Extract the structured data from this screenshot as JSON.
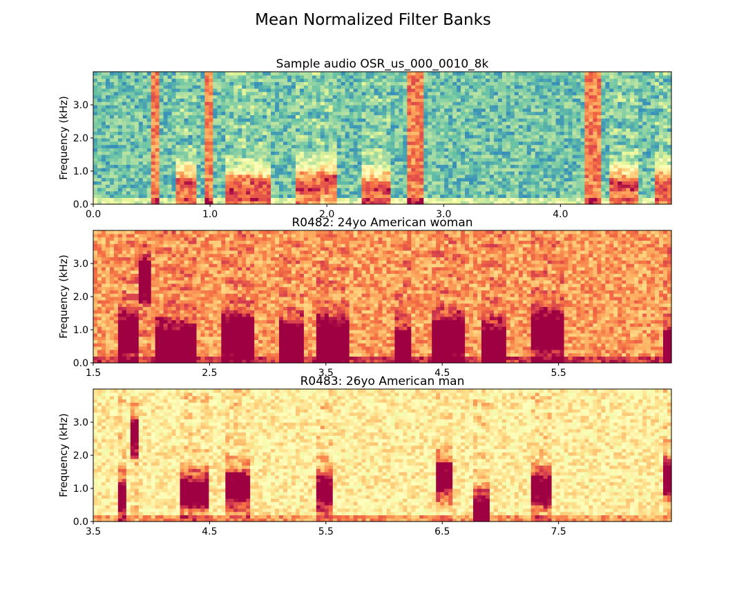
{
  "figure": {
    "suptitle": "Mean Normalized Filter Banks"
  },
  "colormap": {
    "name": "Spectral",
    "stops": [
      "#9e0142",
      "#d53e4f",
      "#f46d43",
      "#fdae61",
      "#fee08b",
      "#ffffbf",
      "#e6f598",
      "#abdda4",
      "#66c2a5",
      "#3288bd",
      "#5e4fa2"
    ]
  },
  "chart_data": [
    {
      "type": "heatmap",
      "title": "Sample audio OSR_us_000_0010_8k",
      "xlabel": "",
      "ylabel": "Frequency (kHz)",
      "xlim": [
        0.0,
        4.95
      ],
      "ylim": [
        0.0,
        4.0
      ],
      "xticks": [
        0.0,
        1.0,
        2.0,
        3.0,
        4.0
      ],
      "xtick_labels": [
        "0.0",
        "1.0",
        "2.0",
        "3.0",
        "4.0"
      ],
      "yticks": [
        0.0,
        1.0,
        2.0,
        3.0
      ],
      "ytick_labels": [
        "0.0",
        "1.0",
        "2.0",
        "3.0"
      ],
      "baseline": 0.78,
      "bursts": [
        {
          "start": 0.51,
          "end": 0.55,
          "f0": 0.0
        },
        {
          "start": 0.7,
          "end": 0.87,
          "f0": 0.55
        },
        {
          "start": 0.95,
          "end": 1.02,
          "f0": 0.0
        },
        {
          "start": 1.12,
          "end": 1.51,
          "f0": 0.48
        },
        {
          "start": 1.73,
          "end": 1.93,
          "f0": 0.55
        },
        {
          "start": 1.93,
          "end": 2.1,
          "f0": 0.65
        },
        {
          "start": 2.3,
          "end": 2.55,
          "f0": 0.45
        },
        {
          "start": 2.7,
          "end": 2.83,
          "f0": 0.0
        },
        {
          "start": 4.2,
          "end": 4.35,
          "f0": 0.0
        },
        {
          "start": 4.42,
          "end": 4.67,
          "f0": 0.55
        },
        {
          "start": 4.82,
          "end": 4.95,
          "f0": 0.5
        }
      ]
    },
    {
      "type": "heatmap",
      "title": "R0482: 24yo American woman",
      "xlabel": "",
      "ylabel": "Frequency (kHz)",
      "xlim": [
        1.5,
        6.47
      ],
      "ylim": [
        0.0,
        4.0
      ],
      "xticks": [
        1.5,
        2.5,
        3.5,
        4.5,
        5.5
      ],
      "xtick_labels": [
        "1.5",
        "2.5",
        "3.5",
        "4.5",
        "5.5"
      ],
      "yticks": [
        0.0,
        1.0,
        2.0,
        3.0
      ],
      "ytick_labels": [
        "0.0",
        "1.0",
        "2.0",
        "3.0"
      ],
      "baseline": 0.28,
      "bursts": [
        {
          "start": 1.7,
          "end": 1.9,
          "f0": 0.85
        },
        {
          "start": 1.9,
          "end": 2.0,
          "f0": 2.55
        },
        {
          "start": 2.05,
          "end": 2.4,
          "f0": 0.55
        },
        {
          "start": 2.6,
          "end": 2.9,
          "f0": 0.8
        },
        {
          "start": 3.1,
          "end": 3.3,
          "f0": 0.6
        },
        {
          "start": 3.4,
          "end": 3.7,
          "f0": 0.7
        },
        {
          "start": 4.1,
          "end": 4.25,
          "f0": 0.45
        },
        {
          "start": 4.4,
          "end": 4.7,
          "f0": 0.75
        },
        {
          "start": 4.85,
          "end": 5.05,
          "f0": 0.55
        },
        {
          "start": 5.25,
          "end": 5.55,
          "f0": 0.9
        },
        {
          "start": 6.4,
          "end": 6.47,
          "f0": 0.4
        }
      ]
    },
    {
      "type": "heatmap",
      "title": "R0483: 26yo American man",
      "xlabel": "",
      "ylabel": "Frequency (kHz)",
      "xlim": [
        3.5,
        8.47
      ],
      "ylim": [
        0.0,
        4.0
      ],
      "xticks": [
        3.5,
        4.5,
        5.5,
        6.5,
        7.5
      ],
      "xtick_labels": [
        "3.5",
        "4.5",
        "5.5",
        "6.5",
        "7.5"
      ],
      "yticks": [
        0.0,
        1.0,
        2.0,
        3.0
      ],
      "ytick_labels": [
        "0.0",
        "1.0",
        "2.0",
        "3.0"
      ],
      "baseline": 0.45,
      "bursts": [
        {
          "start": 3.7,
          "end": 3.8,
          "f0": 0.75
        },
        {
          "start": 3.83,
          "end": 3.9,
          "f0": 2.6
        },
        {
          "start": 4.25,
          "end": 4.5,
          "f0": 0.9
        },
        {
          "start": 4.65,
          "end": 4.85,
          "f0": 1.0
        },
        {
          "start": 5.4,
          "end": 5.55,
          "f0": 0.9
        },
        {
          "start": 6.45,
          "end": 6.6,
          "f0": 1.3
        },
        {
          "start": 6.75,
          "end": 6.9,
          "f0": 0.35
        },
        {
          "start": 7.25,
          "end": 7.45,
          "f0": 1.0
        },
        {
          "start": 8.4,
          "end": 8.47,
          "f0": 1.3
        }
      ]
    }
  ]
}
